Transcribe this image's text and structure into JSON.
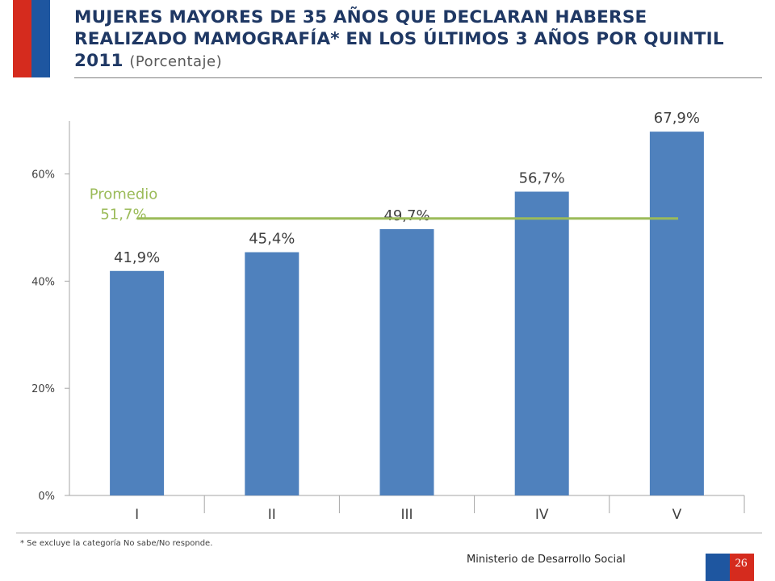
{
  "header": {
    "title": "MUJERES MAYORES DE 35 AÑOS QUE DECLARAN HABERSE REALIZADO MAMOGRAFÍA* EN LOS ÚLTIMOS 3 AÑOS POR QUINTIL 2011",
    "subtitle": "(Porcentaje)"
  },
  "chart_data": {
    "type": "bar",
    "categories": [
      "I",
      "II",
      "III",
      "IV",
      "V"
    ],
    "values": [
      41.9,
      45.4,
      49.7,
      56.7,
      67.9
    ],
    "data_labels": [
      "41,9%",
      "45,4%",
      "49,7%",
      "56,7%",
      "67,9%"
    ],
    "ylim": [
      0,
      70
    ],
    "yticks": [
      0,
      20,
      40,
      60
    ],
    "ytick_labels": [
      "0%",
      "20%",
      "40%",
      "60%"
    ],
    "bar_color": "#4f81bd",
    "average": {
      "value": 51.7,
      "label_line1": "Promedio",
      "label_line2": "51,7%",
      "color": "#9bbb59"
    },
    "grid": false
  },
  "footer": {
    "footnote": "* Se excluye la categoría No sabe/No responde.",
    "ministry": "Ministerio de Desarrollo Social",
    "page_number": "26"
  },
  "colors": {
    "red": "#d52b1e",
    "blue": "#1e56a0",
    "title": "#1f3864"
  }
}
